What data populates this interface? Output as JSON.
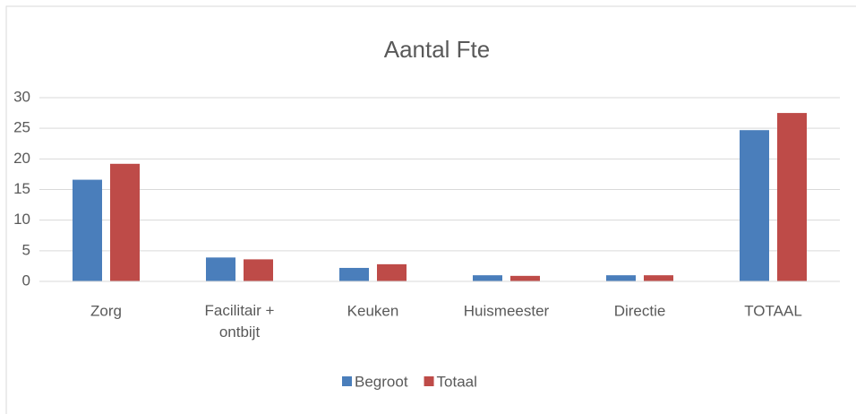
{
  "chart_data": {
    "type": "bar",
    "title": "Aantal Fte",
    "categories": [
      "Zorg",
      "Facilitair + ontbijt",
      "Keuken",
      "Huismeester",
      "Directie",
      "TOTAAL"
    ],
    "series": [
      {
        "name": "Begroot",
        "color": "#4a7ebb",
        "values": [
          16.6,
          3.9,
          2.2,
          1.0,
          1.0,
          24.7
        ]
      },
      {
        "name": "Totaal",
        "color": "#be4b48",
        "values": [
          19.2,
          3.6,
          2.8,
          0.9,
          1.0,
          27.5
        ]
      }
    ],
    "ylim": [
      0,
      30
    ],
    "yticks": [
      0,
      5,
      10,
      15,
      20,
      25,
      30
    ],
    "grid": true,
    "legend": "bottom"
  }
}
